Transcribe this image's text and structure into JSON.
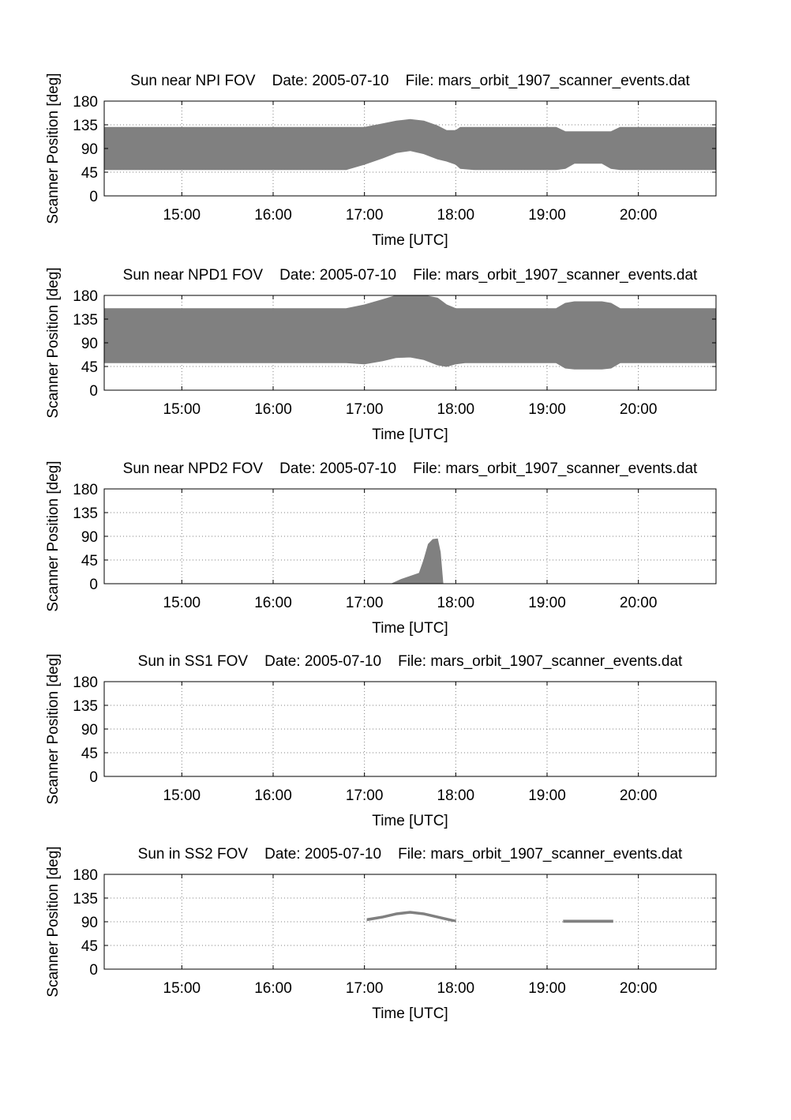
{
  "figure": {
    "colors": {
      "fill": "#808080",
      "axis": "#000000",
      "grid": "#808080",
      "background": "#ffffff"
    },
    "shared_axes": {
      "xlabel": "Time [UTC]",
      "ylabel": "Scanner Position [deg]",
      "x_range_hours": [
        14.15,
        20.85
      ],
      "xticks": [
        {
          "value": 15,
          "label": "15:00"
        },
        {
          "value": 16,
          "label": "16:00"
        },
        {
          "value": 17,
          "label": "17:00"
        },
        {
          "value": 18,
          "label": "18:00"
        },
        {
          "value": 19,
          "label": "19:00"
        },
        {
          "value": 20,
          "label": "20:00"
        }
      ],
      "y_range": [
        0,
        180
      ],
      "yticks": [
        {
          "value": 0,
          "label": "0"
        },
        {
          "value": 45,
          "label": "45"
        },
        {
          "value": 90,
          "label": "90"
        },
        {
          "value": 135,
          "label": "135"
        },
        {
          "value": 180,
          "label": "180"
        }
      ],
      "grid": "dotted"
    }
  },
  "chart_data": [
    {
      "type": "area",
      "title": "Sun near NPI FOV    Date: 2005-07-10    File: mars_orbit_1907_scanner_events.dat",
      "xlabel": "Time [UTC]",
      "ylabel": "Scanner Position [deg]",
      "x_range_hours": [
        14.15,
        20.85
      ],
      "ylim": [
        0,
        180
      ],
      "bands": [
        {
          "x": [
            14.15,
            16.8,
            17.0,
            17.2,
            17.35,
            17.5,
            17.65,
            17.8,
            17.9,
            18.0,
            18.05,
            18.2,
            19.1,
            19.2,
            19.3,
            19.6,
            19.7,
            19.8,
            20.85
          ],
          "lower": [
            50,
            50,
            60,
            72,
            82,
            86,
            80,
            70,
            66,
            60,
            52,
            50,
            50,
            52,
            62,
            62,
            52,
            50,
            50
          ],
          "upper": [
            130,
            130,
            130,
            137,
            142,
            145,
            142,
            133,
            124,
            124,
            130,
            130,
            130,
            122,
            122,
            122,
            122,
            130,
            130
          ]
        }
      ]
    },
    {
      "type": "area",
      "title": "Sun near NPD1 FOV    Date: 2005-07-10    File: mars_orbit_1907_scanner_events.dat",
      "xlabel": "Time [UTC]",
      "ylabel": "Scanner Position [deg]",
      "x_range_hours": [
        14.15,
        20.85
      ],
      "ylim": [
        0,
        180
      ],
      "bands": [
        {
          "x": [
            14.15,
            16.8,
            17.0,
            17.2,
            17.35,
            17.5,
            17.65,
            17.8,
            17.9,
            18.0,
            18.1,
            19.1,
            19.2,
            19.3,
            19.6,
            19.7,
            19.8,
            20.85
          ],
          "lower": [
            52,
            52,
            50,
            56,
            62,
            63,
            58,
            48,
            45,
            50,
            52,
            52,
            42,
            40,
            40,
            42,
            52,
            52
          ],
          "upper": [
            155,
            155,
            162,
            172,
            180,
            180,
            180,
            175,
            162,
            155,
            155,
            155,
            165,
            168,
            168,
            165,
            155,
            155
          ]
        }
      ]
    },
    {
      "type": "area",
      "title": "Sun near NPD2 FOV    Date: 2005-07-10    File: mars_orbit_1907_scanner_events.dat",
      "xlabel": "Time [UTC]",
      "ylabel": "Scanner Position [deg]",
      "x_range_hours": [
        14.15,
        20.85
      ],
      "ylim": [
        0,
        180
      ],
      "bands": [
        {
          "x": [
            17.3,
            17.4,
            17.5,
            17.6,
            17.65,
            17.7,
            17.75,
            17.8,
            17.83,
            17.86
          ],
          "lower": [
            0,
            0,
            0,
            0,
            0,
            0,
            0,
            0,
            0,
            0
          ],
          "upper": [
            0,
            8,
            14,
            20,
            45,
            75,
            84,
            85,
            60,
            0
          ]
        }
      ]
    },
    {
      "type": "area",
      "title": "Sun in SS1 FOV    Date: 2005-07-10    File: mars_orbit_1907_scanner_events.dat",
      "xlabel": "Time [UTC]",
      "ylabel": "Scanner Position [deg]",
      "x_range_hours": [
        14.15,
        20.85
      ],
      "ylim": [
        0,
        180
      ],
      "bands": []
    },
    {
      "type": "area",
      "title": "Sun in SS2 FOV    Date: 2005-07-10    File: mars_orbit_1907_scanner_events.dat",
      "xlabel": "Time [UTC]",
      "ylabel": "Scanner Position [deg]",
      "x_range_hours": [
        14.15,
        20.85
      ],
      "ylim": [
        0,
        180
      ],
      "bands": [
        {
          "x": [
            17.03,
            17.2,
            17.35,
            17.5,
            17.65,
            17.8,
            17.95,
            18.0
          ],
          "lower": [
            92,
            97,
            103,
            106,
            103,
            97,
            91,
            90
          ],
          "upper": [
            96,
            101,
            107,
            110,
            107,
            101,
            95,
            93
          ]
        },
        {
          "x": [
            19.18,
            19.4,
            19.6,
            19.72
          ],
          "lower": [
            89,
            89,
            89,
            89
          ],
          "upper": [
            93,
            93,
            93,
            93
          ]
        }
      ]
    }
  ]
}
